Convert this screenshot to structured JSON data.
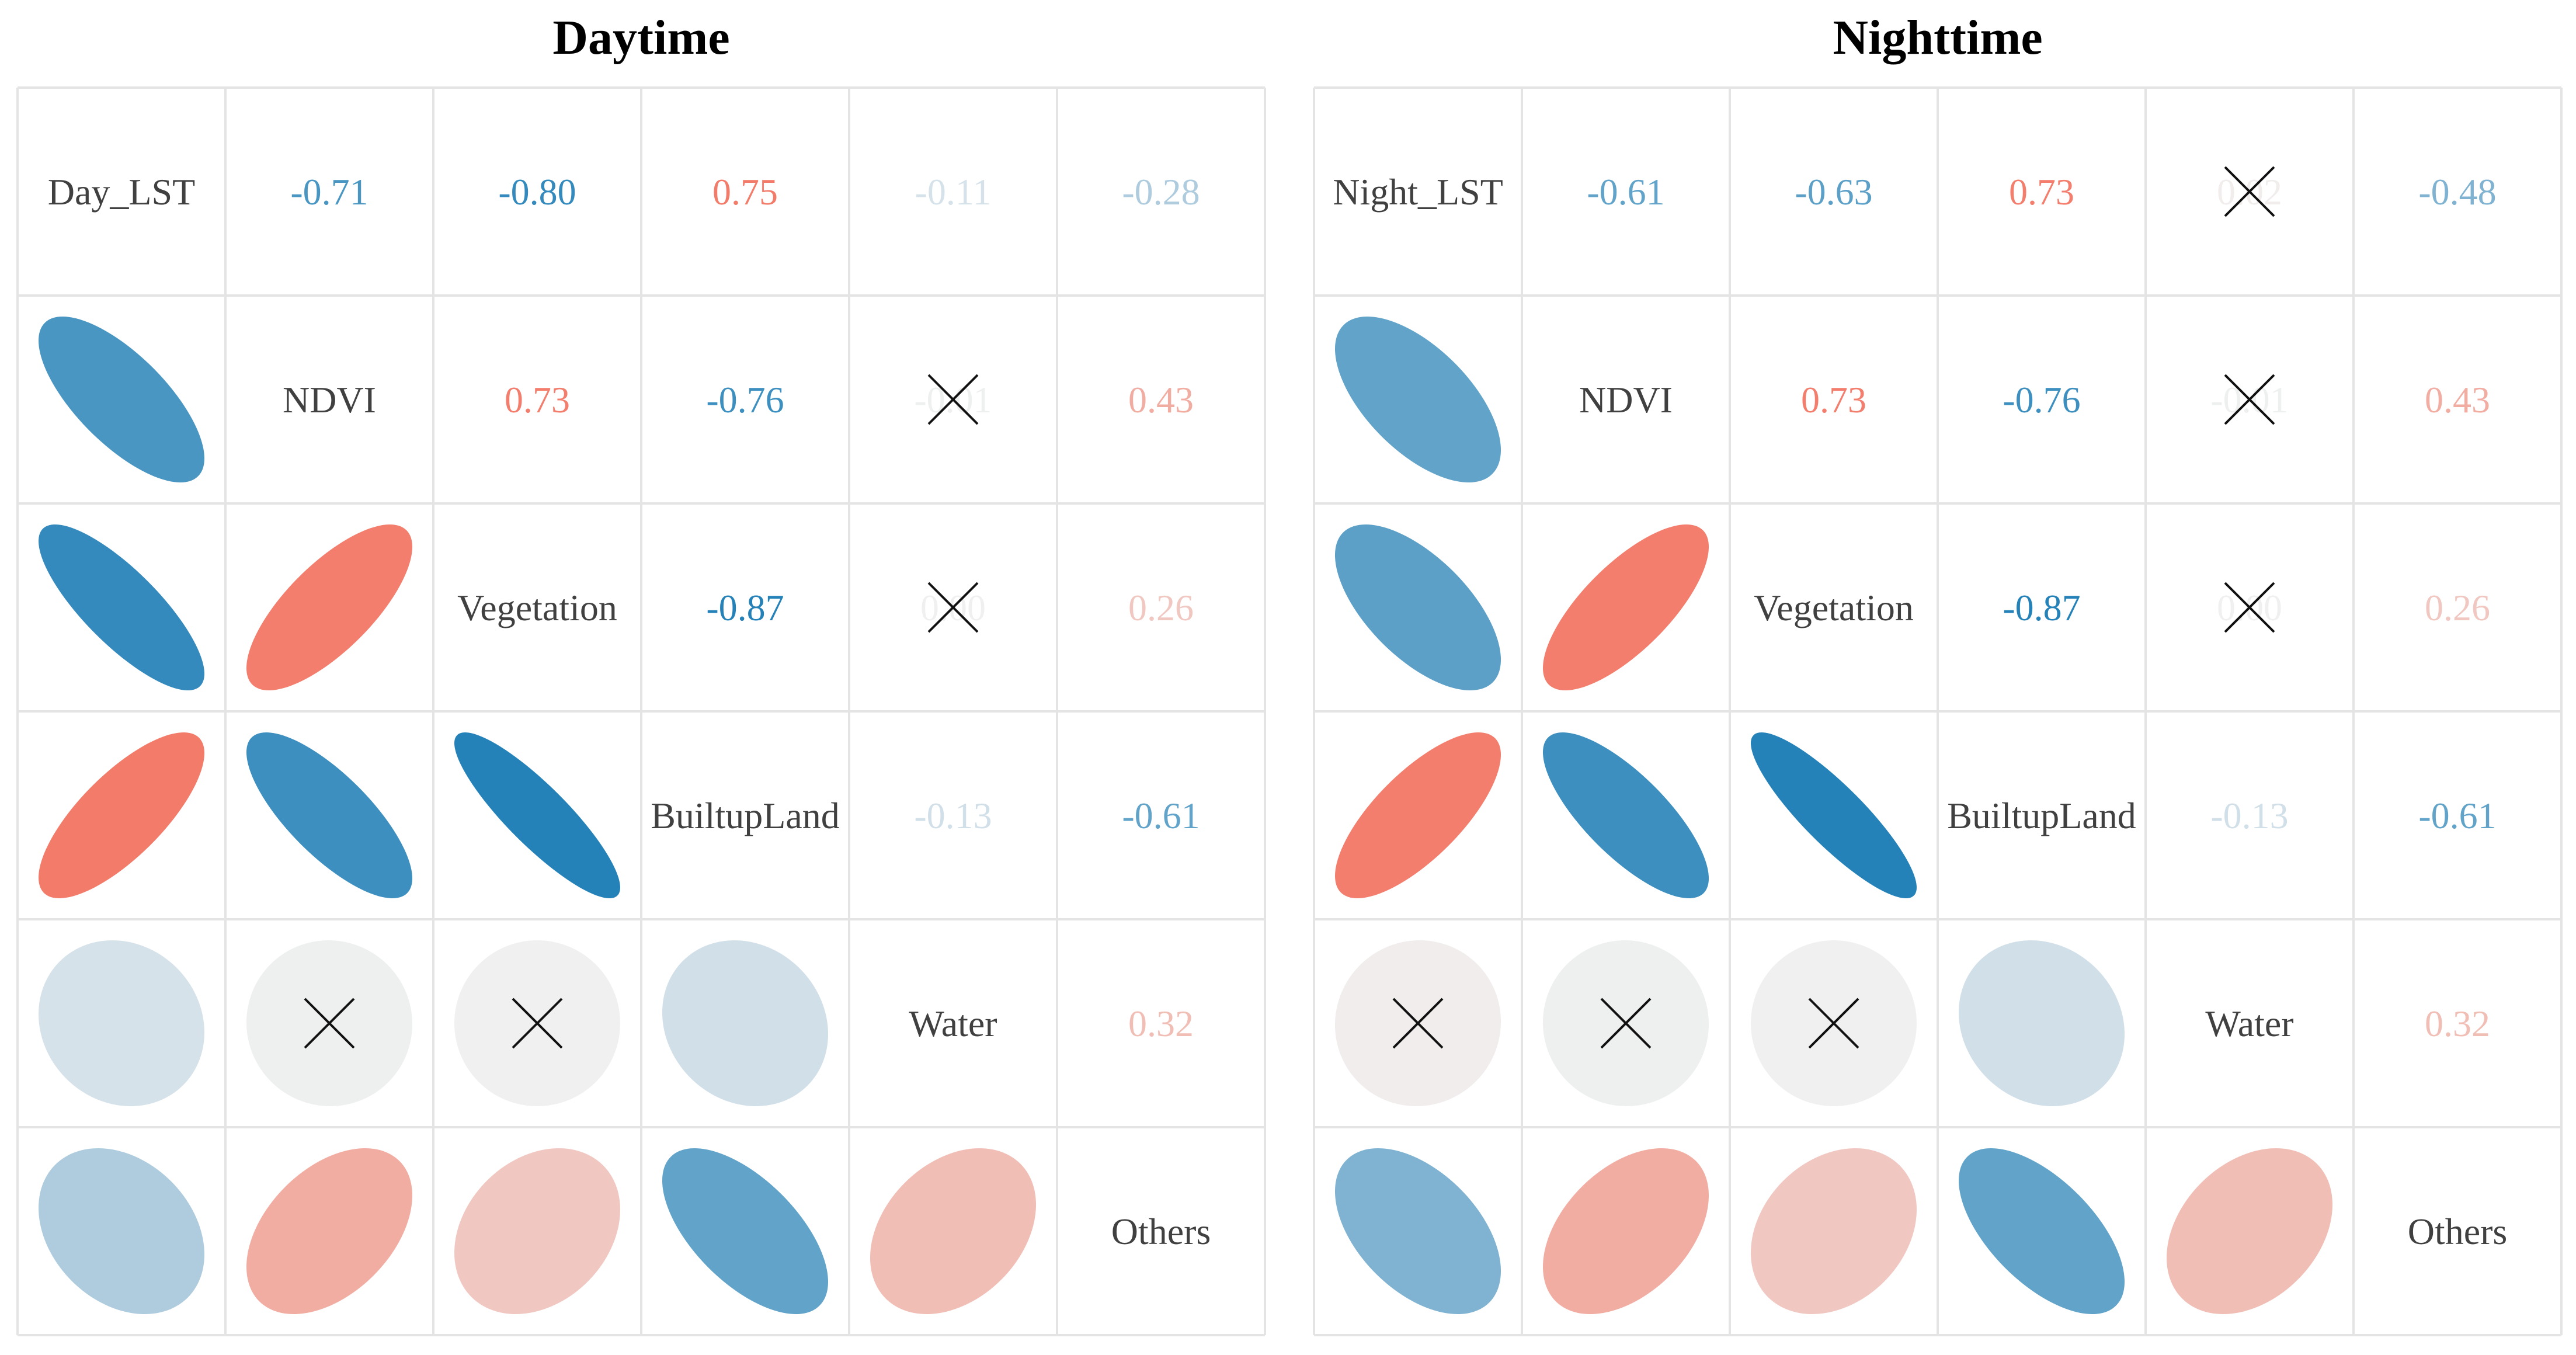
{
  "chart_data": [
    {
      "type": "correlation-matrix",
      "title": "Daytime",
      "variables": [
        "Day_LST",
        "NDVI",
        "Vegetation",
        "BuiltupLand",
        "Water",
        "Others"
      ],
      "matrix": [
        [
          1.0,
          -0.71,
          -0.8,
          0.75,
          -0.11,
          -0.28
        ],
        [
          -0.71,
          1.0,
          0.73,
          -0.76,
          -0.01,
          0.43
        ],
        [
          -0.8,
          0.73,
          1.0,
          -0.87,
          0.0,
          0.26
        ],
        [
          0.75,
          -0.76,
          -0.87,
          1.0,
          -0.13,
          -0.61
        ],
        [
          -0.11,
          -0.01,
          0.0,
          -0.13,
          1.0,
          0.32
        ],
        [
          -0.28,
          0.43,
          0.26,
          -0.61,
          0.32,
          1.0
        ]
      ],
      "labels": [
        [
          "",
          "-0.71",
          "-0.80",
          "0.75",
          "-0.11",
          "-0.28"
        ],
        [
          "",
          "",
          "0.73",
          "-0.76",
          "-0.01",
          "0.43"
        ],
        [
          "",
          "",
          "",
          "-0.87",
          "0.00",
          "0.26"
        ],
        [
          "",
          "",
          "",
          "",
          "-0.13",
          "-0.61"
        ],
        [
          "",
          "",
          "",
          "",
          "",
          "0.32"
        ],
        [
          "",
          "",
          "",
          "",
          "",
          ""
        ]
      ],
      "insignificant": [
        [
          1,
          4
        ],
        [
          2,
          4
        ]
      ],
      "upper": "number",
      "lower": "ellipse",
      "color_scale": {
        "min": -1,
        "max": 1,
        "negative": "#0571b0",
        "neutral": "#f0f0f0",
        "positive": "#f4543c"
      }
    },
    {
      "type": "correlation-matrix",
      "title": "Nighttime",
      "variables": [
        "Night_LST",
        "NDVI",
        "Vegetation",
        "BuiltupLand",
        "Water",
        "Others"
      ],
      "matrix": [
        [
          1.0,
          -0.61,
          -0.63,
          0.73,
          0.02,
          -0.48
        ],
        [
          -0.61,
          1.0,
          0.73,
          -0.76,
          -0.01,
          0.43
        ],
        [
          -0.63,
          0.73,
          1.0,
          -0.87,
          0.0,
          0.26
        ],
        [
          0.73,
          -0.76,
          -0.87,
          1.0,
          -0.13,
          -0.61
        ],
        [
          0.02,
          -0.01,
          0.0,
          -0.13,
          1.0,
          0.32
        ],
        [
          -0.48,
          0.43,
          0.26,
          -0.61,
          0.32,
          1.0
        ]
      ],
      "labels": [
        [
          "",
          "-0.61",
          "-0.63",
          "0.73",
          "0.02",
          "-0.48"
        ],
        [
          "",
          "",
          "0.73",
          "-0.76",
          "-0.01",
          "0.43"
        ],
        [
          "",
          "",
          "",
          "-0.87",
          "0.00",
          "0.26"
        ],
        [
          "",
          "",
          "",
          "",
          "-0.13",
          "-0.61"
        ],
        [
          "",
          "",
          "",
          "",
          "",
          "0.32"
        ],
        [
          "",
          "",
          "",
          "",
          "",
          ""
        ]
      ],
      "insignificant": [
        [
          0,
          4
        ],
        [
          1,
          4
        ],
        [
          2,
          4
        ]
      ],
      "upper": "number",
      "lower": "ellipse",
      "color_scale": {
        "min": -1,
        "max": 1,
        "negative": "#0571b0",
        "neutral": "#f0f0f0",
        "positive": "#f4543c"
      }
    }
  ]
}
